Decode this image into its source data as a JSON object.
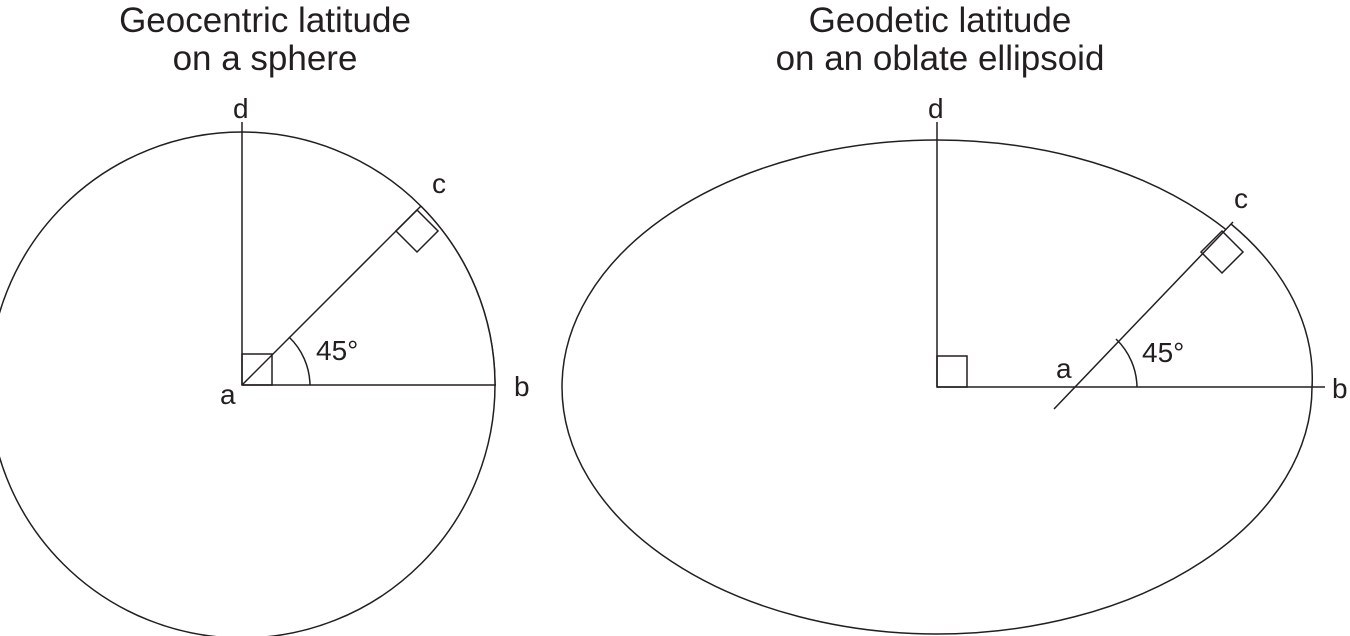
{
  "left_diagram": {
    "title_line1": "Geocentric latitude",
    "title_line2": "on a sphere",
    "labels": {
      "a": "a",
      "b": "b",
      "c": "c",
      "d": "d"
    },
    "angle_label": "45°"
  },
  "right_diagram": {
    "title_line1": "Geodetic latitude",
    "title_line2": "on an oblate ellipsoid",
    "labels": {
      "a": "a",
      "b": "b",
      "c": "c",
      "d": "d"
    },
    "angle_label": "45°"
  },
  "colors": {
    "fill": "#f5ede6",
    "stroke": "#231f20",
    "background": "#ffffff"
  }
}
